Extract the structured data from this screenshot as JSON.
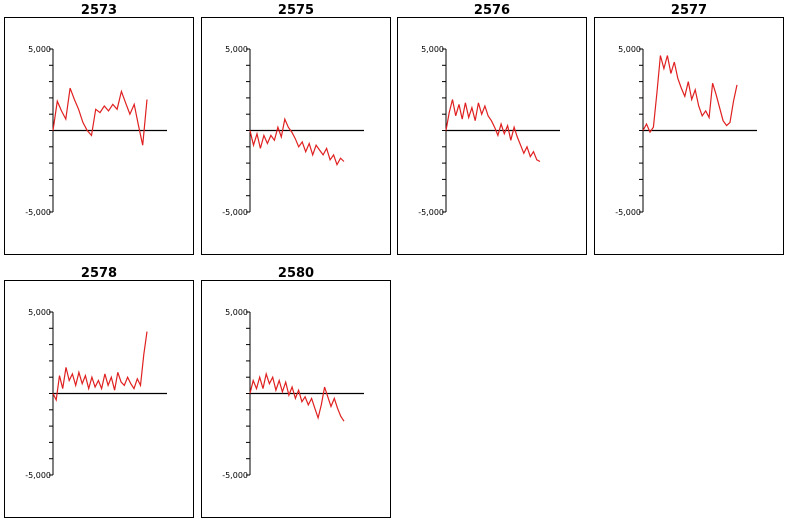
{
  "colors": {
    "line": "#e02020",
    "axis": "#000000",
    "frame": "#000000"
  },
  "chart_data": [
    {
      "type": "line",
      "title": "2573",
      "yticks": [
        "5,000",
        "-5,000"
      ],
      "ylim": [
        -5000,
        5000
      ],
      "x": [
        0,
        1,
        2,
        3,
        4,
        5,
        6,
        7,
        8,
        9,
        10,
        11,
        12,
        13,
        14,
        15,
        16,
        17,
        18,
        19,
        20,
        21,
        22
      ],
      "values": [
        0,
        1800,
        1200,
        700,
        2600,
        1900,
        1300,
        500,
        0,
        -300,
        1300,
        1100,
        1500,
        1200,
        1600,
        1300,
        2400,
        1700,
        1000,
        1600,
        300,
        -900,
        1900
      ]
    },
    {
      "type": "line",
      "title": "2575",
      "yticks": [
        "5,000",
        "-5,000"
      ],
      "ylim": [
        -5000,
        5000
      ],
      "x": [
        0,
        1,
        2,
        3,
        4,
        5,
        6,
        7,
        8,
        9,
        10,
        11,
        12,
        13,
        14,
        15,
        16,
        17,
        18,
        19,
        20,
        21,
        22,
        23,
        24,
        25,
        26,
        27
      ],
      "values": [
        0,
        -900,
        -200,
        -1100,
        -300,
        -800,
        -300,
        -600,
        200,
        -400,
        700,
        200,
        -100,
        -500,
        -1000,
        -700,
        -1300,
        -800,
        -1500,
        -900,
        -1200,
        -1500,
        -1100,
        -1800,
        -1500,
        -2100,
        -1700,
        -1900
      ]
    },
    {
      "type": "line",
      "title": "2576",
      "yticks": [
        "5,000",
        "-5,000"
      ],
      "ylim": [
        -5000,
        5000
      ],
      "x": [
        0,
        1,
        2,
        3,
        4,
        5,
        6,
        7,
        8,
        9,
        10,
        11,
        12,
        13,
        14,
        15,
        16,
        17,
        18,
        19,
        20,
        21,
        22,
        23,
        24,
        25,
        26,
        27,
        28,
        29
      ],
      "values": [
        0,
        1100,
        1900,
        900,
        1600,
        700,
        1700,
        800,
        1400,
        600,
        1700,
        1000,
        1500,
        900,
        600,
        200,
        -300,
        400,
        -200,
        300,
        -600,
        200,
        -400,
        -900,
        -1400,
        -1000,
        -1600,
        -1300,
        -1800,
        -1900
      ]
    },
    {
      "type": "line",
      "title": "2577",
      "yticks": [
        "5,000",
        "-5,000"
      ],
      "ylim": [
        -5000,
        5000
      ],
      "x": [
        0,
        1,
        2,
        3,
        4,
        5,
        6,
        7,
        8,
        9,
        10,
        11,
        12,
        13,
        14,
        15,
        16,
        17,
        18,
        19,
        20,
        21,
        22,
        23,
        24,
        25,
        26,
        27
      ],
      "values": [
        0,
        400,
        -100,
        200,
        2300,
        4600,
        3800,
        4600,
        3500,
        4200,
        3200,
        2600,
        2100,
        3000,
        1900,
        2500,
        1500,
        900,
        1200,
        800,
        2900,
        2200,
        1400,
        600,
        300,
        500,
        1800,
        2800
      ]
    },
    {
      "type": "line",
      "title": "2578",
      "yticks": [
        "5,000",
        "-5,000"
      ],
      "ylim": [
        -5000,
        5000
      ],
      "x": [
        0,
        1,
        2,
        3,
        4,
        5,
        6,
        7,
        8,
        9,
        10,
        11,
        12,
        13,
        14,
        15,
        16,
        17,
        18,
        19,
        20,
        21,
        22,
        23,
        24,
        25,
        26,
        27,
        28,
        29
      ],
      "values": [
        0,
        -400,
        1100,
        300,
        1600,
        800,
        1200,
        500,
        1300,
        600,
        1100,
        300,
        1000,
        400,
        800,
        300,
        1200,
        500,
        1000,
        200,
        1300,
        700,
        500,
        1000,
        600,
        300,
        900,
        500,
        2400,
        3800
      ]
    },
    {
      "type": "line",
      "title": "2580",
      "yticks": [
        "5,000",
        "-5,000"
      ],
      "ylim": [
        -5000,
        5000
      ],
      "x": [
        0,
        1,
        2,
        3,
        4,
        5,
        6,
        7,
        8,
        9,
        10,
        11,
        12,
        13,
        14,
        15,
        16,
        17,
        18,
        19,
        20,
        21,
        22,
        23,
        24,
        25,
        26,
        27,
        28,
        29
      ],
      "values": [
        0,
        800,
        300,
        1000,
        300,
        1200,
        600,
        1000,
        200,
        800,
        100,
        700,
        -100,
        400,
        -300,
        200,
        -500,
        -200,
        -700,
        -300,
        -900,
        -1500,
        -700,
        400,
        -200,
        -800,
        -300,
        -900,
        -1400,
        -1700
      ]
    }
  ]
}
